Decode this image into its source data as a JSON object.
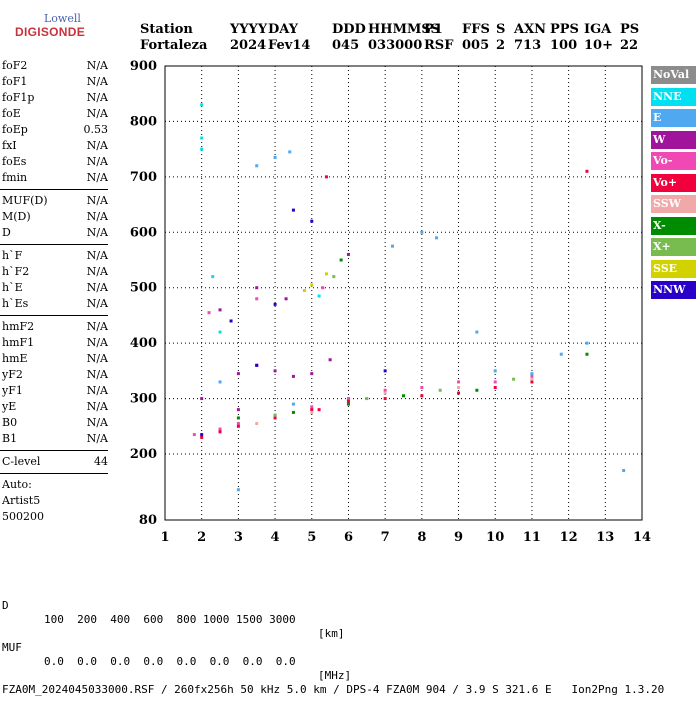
{
  "logo": {
    "line1": "Lowell",
    "line2": "DIGISONDE"
  },
  "header": {
    "labels": [
      "Station",
      "YYYY",
      "DAY",
      "DDD",
      "HHMMSS",
      "P1",
      "FFS",
      "S",
      "AXN",
      "PPS",
      "IGA",
      "PS"
    ],
    "values": [
      "Fortaleza",
      "2024",
      "Fev14",
      "045",
      "033000",
      "RSF",
      "005",
      "2",
      "713",
      "100",
      "10+",
      "22"
    ]
  },
  "params": {
    "group1": [
      {
        "name": "foF2",
        "value": "N/A"
      },
      {
        "name": "foF1",
        "value": "N/A"
      },
      {
        "name": "foF1p",
        "value": "N/A"
      },
      {
        "name": "foE",
        "value": "N/A"
      },
      {
        "name": "foEp",
        "value": "0.53"
      },
      {
        "name": "fxI",
        "value": "N/A"
      },
      {
        "name": "foEs",
        "value": "N/A"
      },
      {
        "name": "fmin",
        "value": "N/A"
      }
    ],
    "group2": [
      {
        "name": "MUF(D)",
        "value": "N/A"
      },
      {
        "name": "M(D)",
        "value": "N/A"
      },
      {
        "name": "D",
        "value": "N/A"
      }
    ],
    "group3": [
      {
        "name": "h`F",
        "value": "N/A"
      },
      {
        "name": "h`F2",
        "value": "N/A"
      },
      {
        "name": "h`E",
        "value": "N/A"
      },
      {
        "name": "h`Es",
        "value": "N/A"
      }
    ],
    "group4": [
      {
        "name": "hmF2",
        "value": "N/A"
      },
      {
        "name": "hmF1",
        "value": "N/A"
      },
      {
        "name": "hmE",
        "value": "N/A"
      },
      {
        "name": "yF2",
        "value": "N/A"
      },
      {
        "name": "yF1",
        "value": "N/A"
      },
      {
        "name": "yE",
        "value": "N/A"
      },
      {
        "name": "B0",
        "value": "N/A"
      },
      {
        "name": "B1",
        "value": "N/A"
      }
    ],
    "clevel": {
      "name": "C-level",
      "value": "44"
    },
    "auto": [
      "Auto:",
      "Artist5",
      "500200"
    ]
  },
  "legend": [
    {
      "label": "NoVal",
      "color": "#8c8c8c"
    },
    {
      "label": "NNE",
      "color": "#00e0f0"
    },
    {
      "label": "E",
      "color": "#50a8f0"
    },
    {
      "label": "W",
      "color": "#a0149c"
    },
    {
      "label": "Vo-",
      "color": "#f048b4"
    },
    {
      "label": "Vo+",
      "color": "#f0003c"
    },
    {
      "label": "SSW",
      "color": "#f0a8a8"
    },
    {
      "label": "X-",
      "color": "#008c00"
    },
    {
      "label": "X+",
      "color": "#78bc50"
    },
    {
      "label": "SSE",
      "color": "#d2d200"
    },
    {
      "label": "NNW",
      "color": "#2800c8"
    }
  ],
  "chart_data": {
    "type": "scatter",
    "xlim": [
      1,
      14
    ],
    "ylim": [
      80,
      900
    ],
    "xticks": [
      1,
      2,
      3,
      4,
      5,
      6,
      7,
      8,
      9,
      10,
      11,
      12,
      13,
      14
    ],
    "yticks": [
      80,
      200,
      300,
      400,
      500,
      600,
      700,
      800,
      900
    ],
    "grid": true,
    "series": [
      {
        "name": "NNE",
        "points": [
          [
            2.0,
            830
          ],
          [
            2.0,
            770
          ],
          [
            2.0,
            750
          ],
          [
            2.5,
            420
          ],
          [
            5.2,
            485
          ],
          [
            2.3,
            520
          ]
        ]
      },
      {
        "name": "E",
        "points": [
          [
            3.5,
            720
          ],
          [
            4.0,
            735
          ],
          [
            4.4,
            745
          ],
          [
            7.2,
            575
          ],
          [
            8.0,
            600
          ],
          [
            8.4,
            590
          ],
          [
            9.5,
            420
          ],
          [
            10.0,
            350
          ],
          [
            11.0,
            345
          ],
          [
            11.8,
            380
          ],
          [
            12.5,
            400
          ],
          [
            13.5,
            170
          ],
          [
            3.0,
            135
          ],
          [
            4.5,
            290
          ],
          [
            2.5,
            330
          ]
        ]
      },
      {
        "name": "W",
        "points": [
          [
            2.0,
            300
          ],
          [
            3.0,
            345
          ],
          [
            3.5,
            360
          ],
          [
            4.0,
            350
          ],
          [
            4.5,
            340
          ],
          [
            5.0,
            345
          ],
          [
            5.5,
            370
          ],
          [
            2.5,
            460
          ],
          [
            3.5,
            500
          ],
          [
            4.3,
            480
          ],
          [
            6.0,
            560
          ],
          [
            3.0,
            280
          ]
        ]
      },
      {
        "name": "Vo-",
        "points": [
          [
            1.8,
            235
          ],
          [
            2.5,
            245
          ],
          [
            3.0,
            255
          ],
          [
            4.0,
            270
          ],
          [
            5.0,
            285
          ],
          [
            6.0,
            300
          ],
          [
            7.0,
            315
          ],
          [
            8.0,
            320
          ],
          [
            9.0,
            330
          ],
          [
            10.0,
            330
          ],
          [
            11.0,
            340
          ],
          [
            2.2,
            455
          ],
          [
            3.5,
            480
          ],
          [
            5.3,
            500
          ]
        ]
      },
      {
        "name": "Vo+",
        "points": [
          [
            2.0,
            230
          ],
          [
            2.5,
            240
          ],
          [
            3.0,
            250
          ],
          [
            4.0,
            265
          ],
          [
            5.0,
            280
          ],
          [
            6.0,
            295
          ],
          [
            7.0,
            300
          ],
          [
            8.0,
            305
          ],
          [
            9.0,
            310
          ],
          [
            10.0,
            320
          ],
          [
            11.0,
            330
          ],
          [
            5.4,
            700
          ],
          [
            12.5,
            710
          ],
          [
            5.2,
            280
          ]
        ]
      },
      {
        "name": "SSW",
        "points": [
          [
            3.5,
            255
          ],
          [
            5.0,
            275
          ],
          [
            7.0,
            310
          ],
          [
            9.0,
            320
          ],
          [
            11.0,
            335
          ]
        ]
      },
      {
        "name": "X-",
        "points": [
          [
            3.0,
            265
          ],
          [
            4.5,
            275
          ],
          [
            6.0,
            290
          ],
          [
            7.5,
            305
          ],
          [
            9.5,
            315
          ],
          [
            12.5,
            380
          ],
          [
            5.8,
            550
          ]
        ]
      },
      {
        "name": "X+",
        "points": [
          [
            4.0,
            270
          ],
          [
            6.5,
            300
          ],
          [
            8.5,
            315
          ],
          [
            10.5,
            335
          ],
          [
            5.6,
            520
          ]
        ]
      },
      {
        "name": "SSE",
        "points": [
          [
            4.8,
            495
          ],
          [
            5.0,
            505
          ],
          [
            5.4,
            525
          ]
        ]
      },
      {
        "name": "NNW",
        "points": [
          [
            2.0,
            235
          ],
          [
            3.5,
            360
          ],
          [
            4.5,
            640
          ],
          [
            5.0,
            620
          ],
          [
            7.0,
            350
          ],
          [
            4.0,
            470
          ],
          [
            2.8,
            440
          ]
        ]
      }
    ]
  },
  "footer": {
    "row1_label": "D",
    "row1_values": "100  200  400  600  800 1000 1500 3000",
    "row1_unit": "[km]",
    "row2_label": "MUF",
    "row2_values": "0.0  0.0  0.0  0.0  0.0  0.0  0.0  0.0",
    "row2_unit": "[MHz]",
    "row3": "FZA0M_2024045033000.RSF / 260fx256h 50 kHz 5.0 km / DPS-4 FZA0M 904 / 3.9 S 321.6 E   Ion2Png 1.3.20"
  }
}
